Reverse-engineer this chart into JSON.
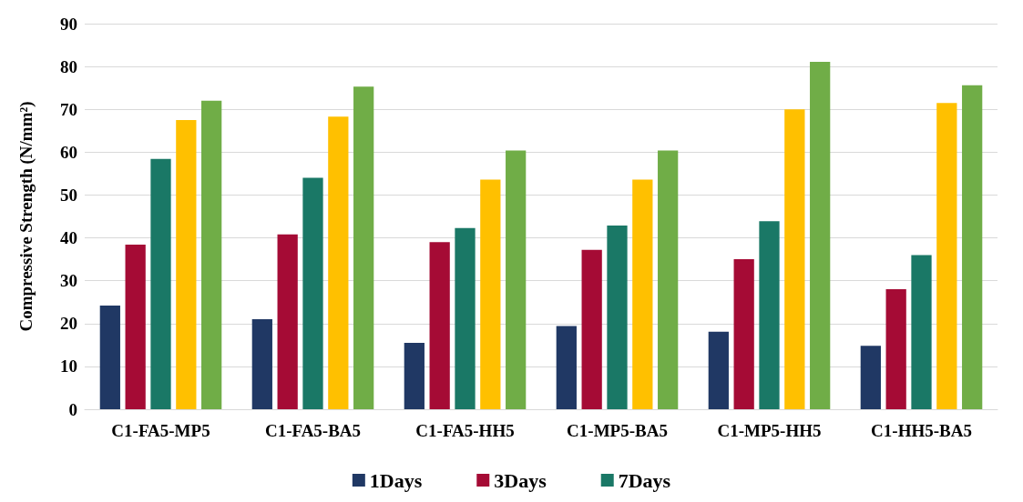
{
  "chart_data": {
    "type": "bar",
    "ylabel": "Compressive Strength (N/mm²)",
    "categories": [
      "C1-FA5-MP5",
      "C1-FA5-BA5",
      "C1-FA5-HH5",
      "C1-MP5-BA5",
      "C1-MP5-HH5",
      "C1-HH5-BA5"
    ],
    "series": [
      {
        "name": "1Days",
        "color": "#203864",
        "values": [
          24.2,
          21,
          15.5,
          19.4,
          18.1,
          14.8
        ]
      },
      {
        "name": "3Days",
        "color": "#a50b35",
        "values": [
          38.4,
          40.8,
          39,
          37.2,
          35,
          28
        ]
      },
      {
        "name": "7Days",
        "color": "#1a7866",
        "values": [
          58.4,
          54,
          42.3,
          42.9,
          43.9,
          36
        ]
      },
      {
        "color": "#ffc000",
        "values": [
          67.5,
          68.3,
          53.6,
          53.6,
          70,
          71.5
        ]
      },
      {
        "color": "#70ad47",
        "values": [
          72,
          75.3,
          60.4,
          60.4,
          81.1,
          75.6
        ]
      }
    ],
    "ylim": [
      0,
      90
    ],
    "yticks": [
      0,
      10,
      20,
      30,
      40,
      50,
      60,
      70,
      80,
      90
    ],
    "grid": "y",
    "legend": "bottom"
  }
}
